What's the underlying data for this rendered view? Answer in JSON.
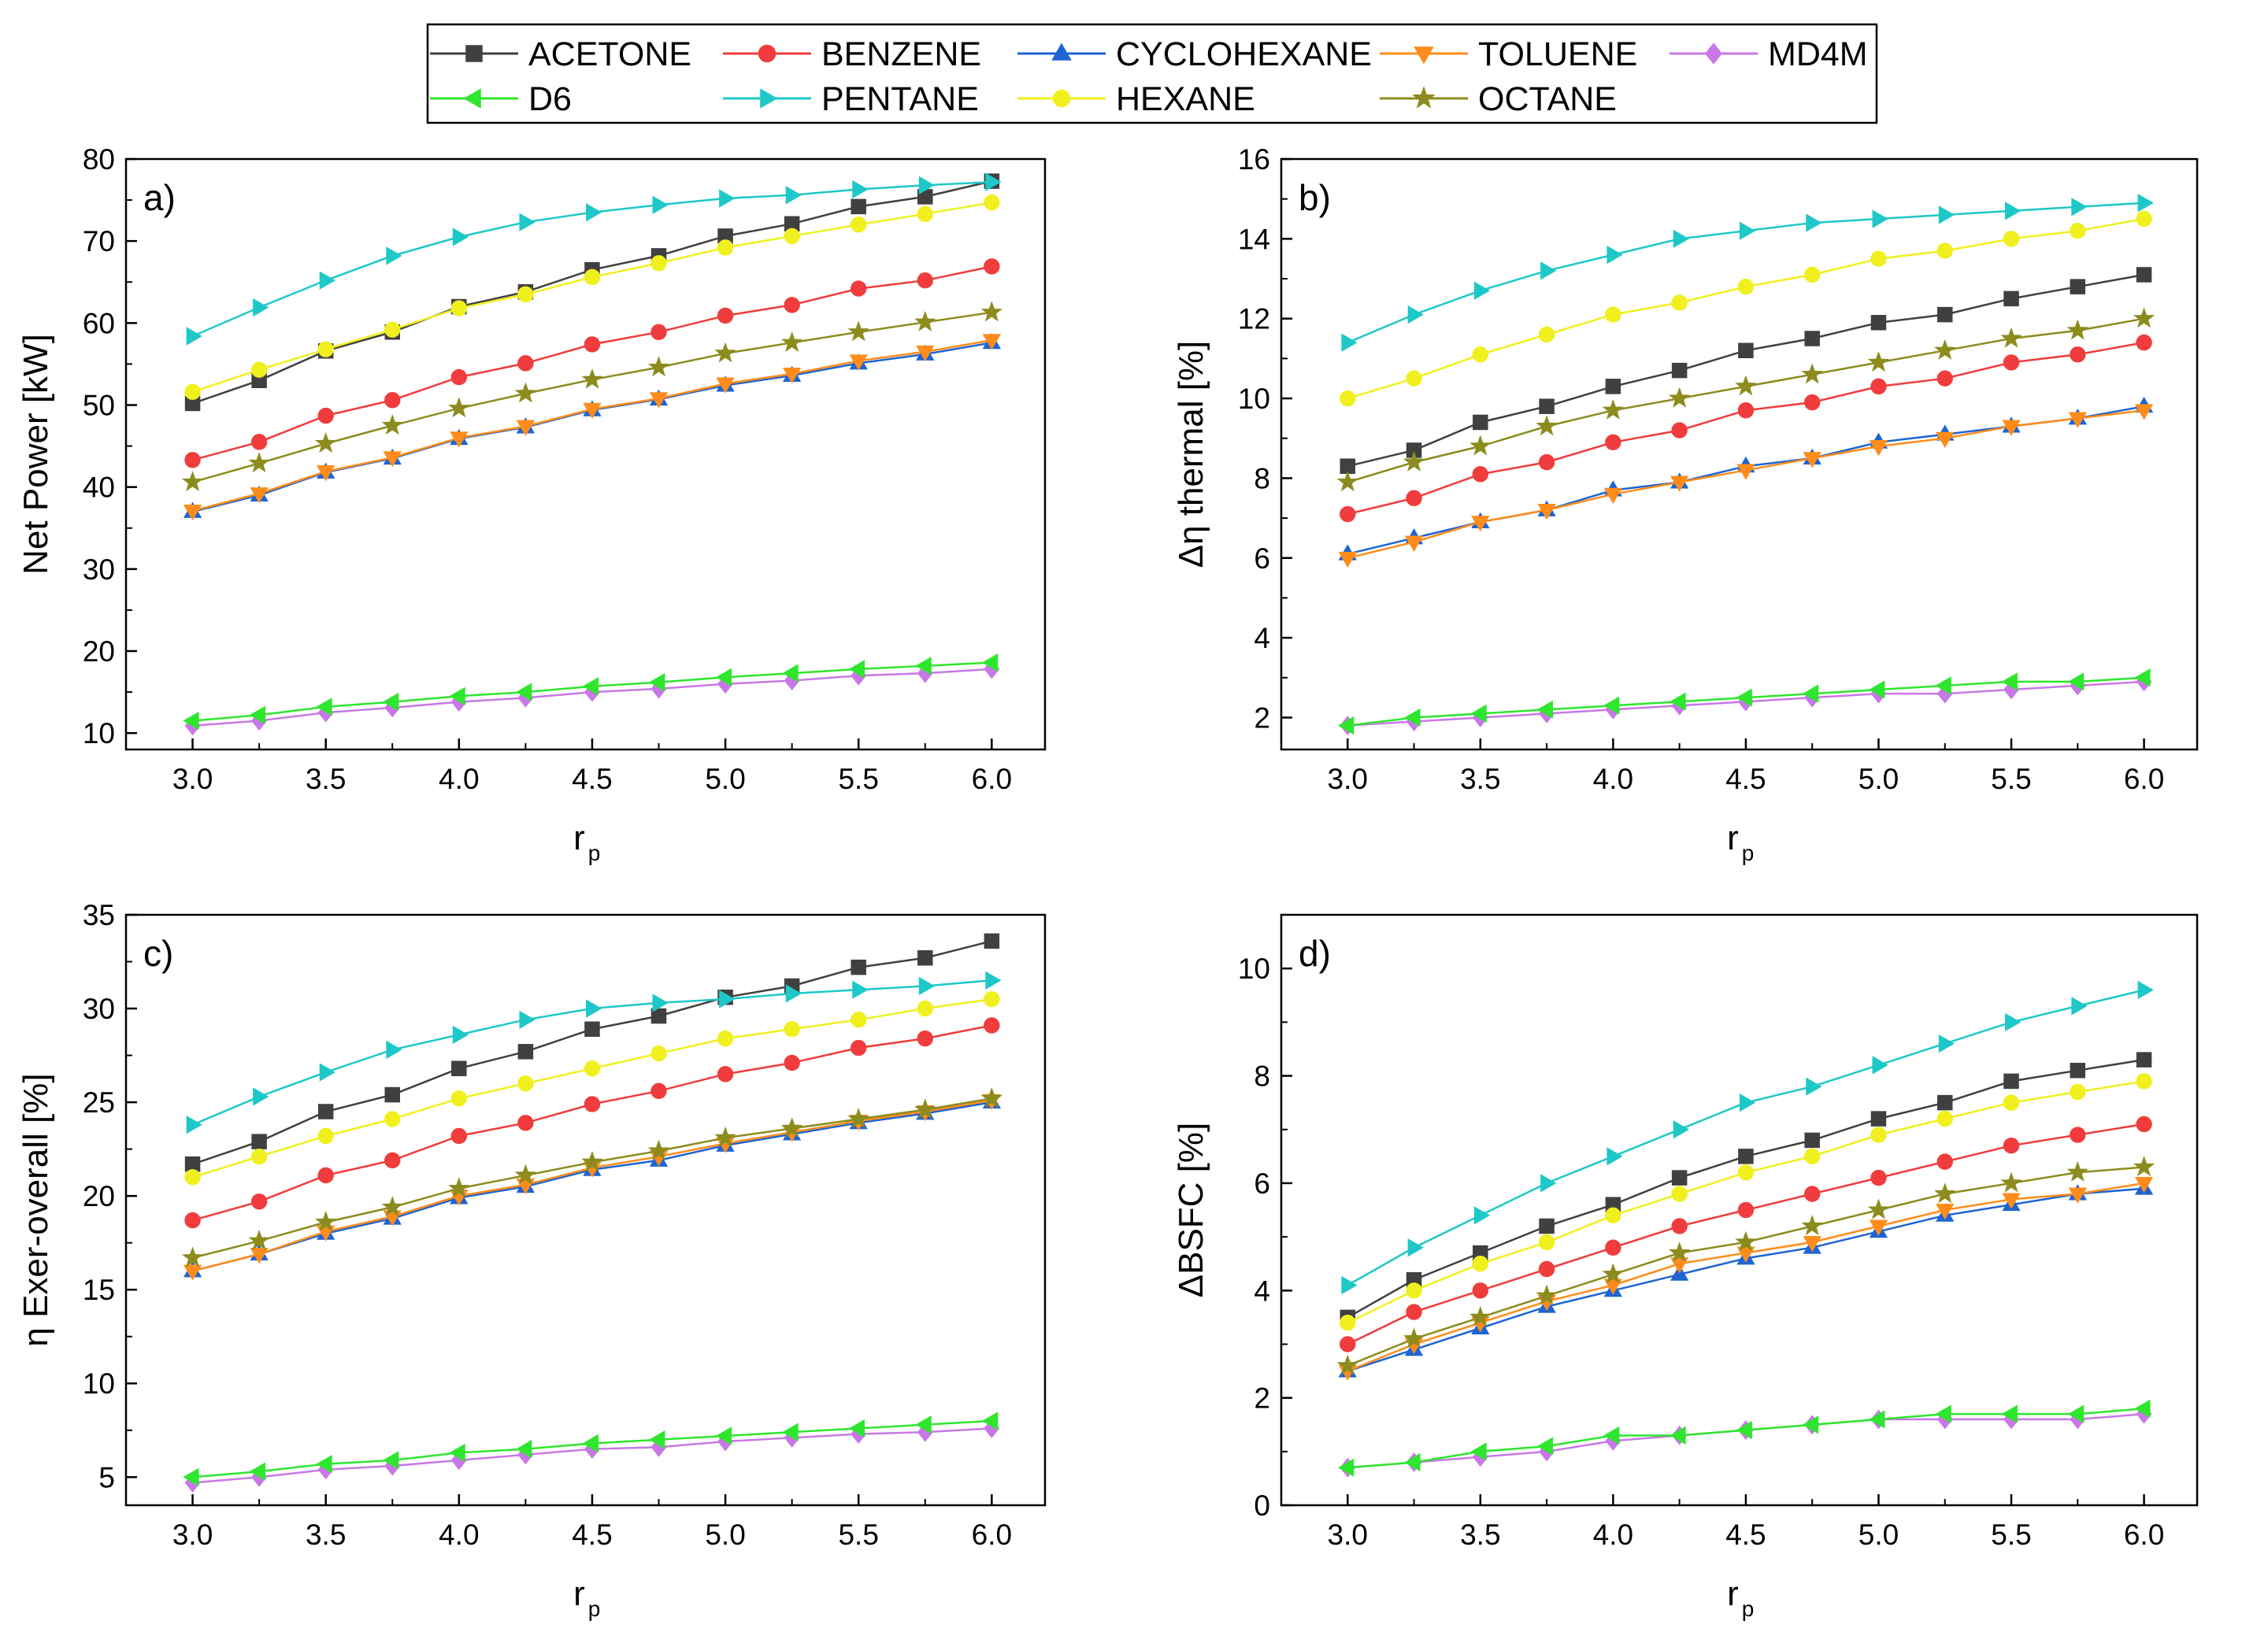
{
  "legend": {
    "entries": [
      {
        "name": "ACETONE",
        "color": "#404040",
        "marker": "square"
      },
      {
        "name": "BENZENE",
        "color": "#f03c3c",
        "marker": "circle"
      },
      {
        "name": "CYCLOHEXANE",
        "color": "#1e64d2",
        "marker": "triangle-up"
      },
      {
        "name": "TOLUENE",
        "color": "#ff8c1a",
        "marker": "triangle-down"
      },
      {
        "name": "MD4M",
        "color": "#c878e6",
        "marker": "diamond"
      },
      {
        "name": "D6",
        "color": "#2ee62e",
        "marker": "triangle-left"
      },
      {
        "name": "PENTANE",
        "color": "#1ec8c8",
        "marker": "triangle-right"
      },
      {
        "name": "HEXANE",
        "color": "#f0f01e",
        "marker": "circle"
      },
      {
        "name": "OCTANE",
        "color": "#8c8c1e",
        "marker": "star"
      }
    ]
  },
  "chart_data": [
    {
      "type": "line",
      "panel_label": "a)",
      "xlabel": "r",
      "xlabel_sub": "p",
      "ylabel": "Net Power [kW]",
      "xlim": [
        2.75,
        6.2
      ],
      "ylim": [
        8,
        80
      ],
      "xticks": [
        "3.0",
        "3.5",
        "4.0",
        "4.5",
        "5.0",
        "5.5",
        "6.0"
      ],
      "yticks": [
        "10",
        "20",
        "30",
        "40",
        "50",
        "60",
        "70",
        "80"
      ],
      "x": [
        3.0,
        3.25,
        3.5,
        3.75,
        4.0,
        4.25,
        4.5,
        4.75,
        5.0,
        5.25,
        5.5,
        5.75,
        6.0
      ],
      "series": [
        {
          "name": "ACETONE",
          "values": [
            50.2,
            53.0,
            56.6,
            58.9,
            62.0,
            63.8,
            66.5,
            68.2,
            70.6,
            72.1,
            74.2,
            75.4,
            77.3
          ]
        },
        {
          "name": "BENZENE",
          "values": [
            43.3,
            45.5,
            48.7,
            50.6,
            53.4,
            55.1,
            57.4,
            58.9,
            60.9,
            62.2,
            64.2,
            65.2,
            66.9
          ]
        },
        {
          "name": "CYCLOHEXANE",
          "values": [
            37.0,
            39.0,
            41.8,
            43.5,
            45.9,
            47.3,
            49.4,
            50.7,
            52.4,
            53.6,
            55.1,
            56.2,
            57.6
          ]
        },
        {
          "name": "TOLUENE",
          "values": [
            37.1,
            39.2,
            41.9,
            43.6,
            46.0,
            47.4,
            49.5,
            50.8,
            52.6,
            53.8,
            55.4,
            56.5,
            57.9
          ]
        },
        {
          "name": "MD4M",
          "values": [
            10.9,
            11.5,
            12.5,
            13.1,
            13.8,
            14.3,
            15.0,
            15.4,
            16.0,
            16.4,
            17.0,
            17.3,
            17.8
          ]
        },
        {
          "name": "D6",
          "values": [
            11.5,
            12.2,
            13.2,
            13.8,
            14.5,
            15.0,
            15.7,
            16.2,
            16.8,
            17.3,
            17.8,
            18.2,
            18.6
          ]
        },
        {
          "name": "PENTANE",
          "values": [
            58.4,
            61.9,
            65.2,
            68.2,
            70.5,
            72.3,
            73.5,
            74.4,
            75.2,
            75.6,
            76.3,
            76.8,
            77.2
          ]
        },
        {
          "name": "HEXANE",
          "values": [
            51.6,
            54.3,
            56.8,
            59.2,
            61.8,
            63.5,
            65.6,
            67.3,
            69.2,
            70.6,
            72.0,
            73.3,
            74.7
          ]
        },
        {
          "name": "OCTANE",
          "values": [
            40.6,
            42.9,
            45.3,
            47.5,
            49.6,
            51.4,
            53.1,
            54.6,
            56.3,
            57.6,
            58.9,
            60.1,
            61.3
          ]
        }
      ]
    },
    {
      "type": "line",
      "panel_label": "b)",
      "xlabel": "r",
      "xlabel_sub": "p",
      "ylabel": "Δη thermal [%]",
      "xlim": [
        2.75,
        6.2
      ],
      "ylim": [
        1.2,
        16
      ],
      "xticks": [
        "3.0",
        "3.5",
        "4.0",
        "4.5",
        "5.0",
        "5.5",
        "6.0"
      ],
      "yticks": [
        "2",
        "4",
        "6",
        "8",
        "10",
        "12",
        "14",
        "16"
      ],
      "x": [
        3.0,
        3.25,
        3.5,
        3.75,
        4.0,
        4.25,
        4.5,
        4.75,
        5.0,
        5.25,
        5.5,
        5.75,
        6.0
      ],
      "series": [
        {
          "name": "ACETONE",
          "values": [
            8.3,
            8.7,
            9.4,
            9.8,
            10.3,
            10.7,
            11.2,
            11.5,
            11.9,
            12.1,
            12.5,
            12.8,
            13.1
          ]
        },
        {
          "name": "BENZENE",
          "values": [
            7.1,
            7.5,
            8.1,
            8.4,
            8.9,
            9.2,
            9.7,
            9.9,
            10.3,
            10.5,
            10.9,
            11.1,
            11.4
          ]
        },
        {
          "name": "CYCLOHEXANE",
          "values": [
            6.1,
            6.5,
            6.9,
            7.2,
            7.7,
            7.9,
            8.3,
            8.5,
            8.9,
            9.1,
            9.3,
            9.5,
            9.8
          ]
        },
        {
          "name": "TOLUENE",
          "values": [
            6.0,
            6.4,
            6.9,
            7.2,
            7.6,
            7.9,
            8.2,
            8.5,
            8.8,
            9.0,
            9.3,
            9.5,
            9.7
          ]
        },
        {
          "name": "MD4M",
          "values": [
            1.8,
            1.9,
            2.0,
            2.1,
            2.2,
            2.3,
            2.4,
            2.5,
            2.6,
            2.6,
            2.7,
            2.8,
            2.9
          ]
        },
        {
          "name": "D6",
          "values": [
            1.8,
            2.0,
            2.1,
            2.2,
            2.3,
            2.4,
            2.5,
            2.6,
            2.7,
            2.8,
            2.9,
            2.9,
            3.0
          ]
        },
        {
          "name": "PENTANE",
          "values": [
            11.4,
            12.1,
            12.7,
            13.2,
            13.6,
            14.0,
            14.2,
            14.4,
            14.5,
            14.6,
            14.7,
            14.8,
            14.9
          ]
        },
        {
          "name": "HEXANE",
          "values": [
            10.0,
            10.5,
            11.1,
            11.6,
            12.1,
            12.4,
            12.8,
            13.1,
            13.5,
            13.7,
            14.0,
            14.2,
            14.5
          ]
        },
        {
          "name": "OCTANE",
          "values": [
            7.9,
            8.4,
            8.8,
            9.3,
            9.7,
            10.0,
            10.3,
            10.6,
            10.9,
            11.2,
            11.5,
            11.7,
            12.0
          ]
        }
      ]
    },
    {
      "type": "line",
      "panel_label": "c)",
      "xlabel": "r",
      "xlabel_sub": "p",
      "ylabel": "η Exer-overall [%]",
      "xlim": [
        2.75,
        6.2
      ],
      "ylim": [
        3.5,
        35
      ],
      "xticks": [
        "3.0",
        "3.5",
        "4.0",
        "4.5",
        "5.0",
        "5.5",
        "6.0"
      ],
      "yticks": [
        "5",
        "10",
        "15",
        "20",
        "25",
        "30",
        "35"
      ],
      "x": [
        3.0,
        3.25,
        3.5,
        3.75,
        4.0,
        4.25,
        4.5,
        4.75,
        5.0,
        5.25,
        5.5,
        5.75,
        6.0
      ],
      "series": [
        {
          "name": "ACETONE",
          "values": [
            21.7,
            22.9,
            24.5,
            25.4,
            26.8,
            27.7,
            28.9,
            29.6,
            30.6,
            31.2,
            32.2,
            32.7,
            33.6
          ]
        },
        {
          "name": "BENZENE",
          "values": [
            18.7,
            19.7,
            21.1,
            21.9,
            23.2,
            23.9,
            24.9,
            25.6,
            26.5,
            27.1,
            27.9,
            28.4,
            29.1
          ]
        },
        {
          "name": "CYCLOHEXANE",
          "values": [
            16.0,
            16.9,
            18.0,
            18.8,
            19.9,
            20.5,
            21.4,
            21.9,
            22.7,
            23.3,
            23.9,
            24.4,
            25.0
          ]
        },
        {
          "name": "TOLUENE",
          "values": [
            16.0,
            16.9,
            18.1,
            18.9,
            20.0,
            20.6,
            21.5,
            22.1,
            22.8,
            23.4,
            24.0,
            24.5,
            25.1
          ]
        },
        {
          "name": "MD4M",
          "values": [
            4.7,
            5.0,
            5.4,
            5.6,
            5.9,
            6.2,
            6.5,
            6.6,
            6.9,
            7.1,
            7.3,
            7.4,
            7.6
          ]
        },
        {
          "name": "D6",
          "values": [
            5.0,
            5.3,
            5.7,
            5.9,
            6.3,
            6.5,
            6.8,
            7.0,
            7.2,
            7.4,
            7.6,
            7.8,
            8.0
          ]
        },
        {
          "name": "PENTANE",
          "values": [
            23.8,
            25.3,
            26.6,
            27.8,
            28.6,
            29.4,
            30.0,
            30.3,
            30.5,
            30.8,
            31.0,
            31.2,
            31.5
          ]
        },
        {
          "name": "HEXANE",
          "values": [
            21.0,
            22.1,
            23.2,
            24.1,
            25.2,
            26.0,
            26.8,
            27.6,
            28.4,
            28.9,
            29.4,
            30.0,
            30.5
          ]
        },
        {
          "name": "OCTANE",
          "values": [
            16.7,
            17.6,
            18.6,
            19.4,
            20.4,
            21.1,
            21.8,
            22.4,
            23.1,
            23.6,
            24.1,
            24.6,
            25.2
          ]
        }
      ]
    },
    {
      "type": "line",
      "panel_label": "d)",
      "xlabel": "r",
      "xlabel_sub": "p",
      "ylabel": "ΔBSFC [%]",
      "xlim": [
        2.75,
        6.2
      ],
      "ylim": [
        0,
        11
      ],
      "xticks": [
        "3.0",
        "3.5",
        "4.0",
        "4.5",
        "5.0",
        "5.5",
        "6.0"
      ],
      "yticks": [
        "0",
        "2",
        "4",
        "6",
        "8",
        "10"
      ],
      "x": [
        3.0,
        3.25,
        3.5,
        3.75,
        4.0,
        4.25,
        4.5,
        4.75,
        5.0,
        5.25,
        5.5,
        5.75,
        6.0
      ],
      "series": [
        {
          "name": "ACETONE",
          "values": [
            3.5,
            4.2,
            4.7,
            5.2,
            5.6,
            6.1,
            6.5,
            6.8,
            7.2,
            7.5,
            7.9,
            8.1,
            8.3
          ]
        },
        {
          "name": "BENZENE",
          "values": [
            3.0,
            3.6,
            4.0,
            4.4,
            4.8,
            5.2,
            5.5,
            5.8,
            6.1,
            6.4,
            6.7,
            6.9,
            7.1
          ]
        },
        {
          "name": "CYCLOHEXANE",
          "values": [
            2.5,
            2.9,
            3.3,
            3.7,
            4.0,
            4.3,
            4.6,
            4.8,
            5.1,
            5.4,
            5.6,
            5.8,
            5.9
          ]
        },
        {
          "name": "TOLUENE",
          "values": [
            2.5,
            3.0,
            3.4,
            3.8,
            4.1,
            4.5,
            4.7,
            4.9,
            5.2,
            5.5,
            5.7,
            5.8,
            6.0
          ]
        },
        {
          "name": "MD4M",
          "values": [
            0.7,
            0.8,
            0.9,
            1.0,
            1.2,
            1.3,
            1.4,
            1.5,
            1.6,
            1.6,
            1.6,
            1.6,
            1.7
          ]
        },
        {
          "name": "D6",
          "values": [
            0.7,
            0.8,
            1.0,
            1.1,
            1.3,
            1.3,
            1.4,
            1.5,
            1.6,
            1.7,
            1.7,
            1.7,
            1.8
          ]
        },
        {
          "name": "PENTANE",
          "values": [
            4.1,
            4.8,
            5.4,
            6.0,
            6.5,
            7.0,
            7.5,
            7.8,
            8.2,
            8.6,
            9.0,
            9.3,
            9.6
          ]
        },
        {
          "name": "HEXANE",
          "values": [
            3.4,
            4.0,
            4.5,
            4.9,
            5.4,
            5.8,
            6.2,
            6.5,
            6.9,
            7.2,
            7.5,
            7.7,
            7.9
          ]
        },
        {
          "name": "OCTANE",
          "values": [
            2.6,
            3.1,
            3.5,
            3.9,
            4.3,
            4.7,
            4.9,
            5.2,
            5.5,
            5.8,
            6.0,
            6.2,
            6.3
          ]
        }
      ]
    }
  ]
}
